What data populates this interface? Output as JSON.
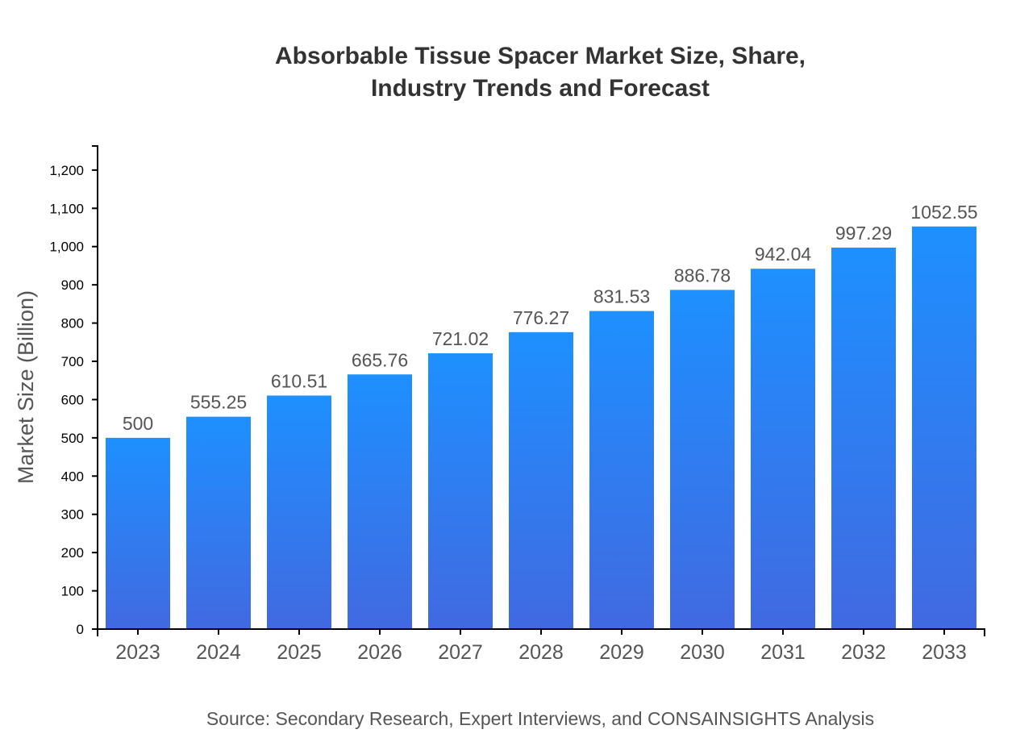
{
  "chart_data": {
    "type": "bar",
    "title_lines": [
      "Absorbable Tissue Spacer Market Size, Share,",
      "Industry Trends and Forecast"
    ],
    "categories": [
      "2023",
      "2024",
      "2025",
      "2026",
      "2027",
      "2028",
      "2029",
      "2030",
      "2031",
      "2032",
      "2033"
    ],
    "values": [
      500,
      555.25,
      610.51,
      665.76,
      721.02,
      776.27,
      831.53,
      886.78,
      942.04,
      997.29,
      1052.55
    ],
    "ylabel": "Market Size (Billion)",
    "xlabel": "",
    "ylim": [
      0,
      1263
    ],
    "yticks": [
      0,
      100,
      200,
      300,
      400,
      500,
      600,
      700,
      800,
      900,
      1000,
      1100,
      1200
    ],
    "grid": false,
    "colors": {
      "bar_top": "#1E90FF",
      "bar_bottom": "#4169E1"
    },
    "source": "Source: Secondary Research, Expert Interviews, and CONSAINSIGHTS Analysis"
  }
}
